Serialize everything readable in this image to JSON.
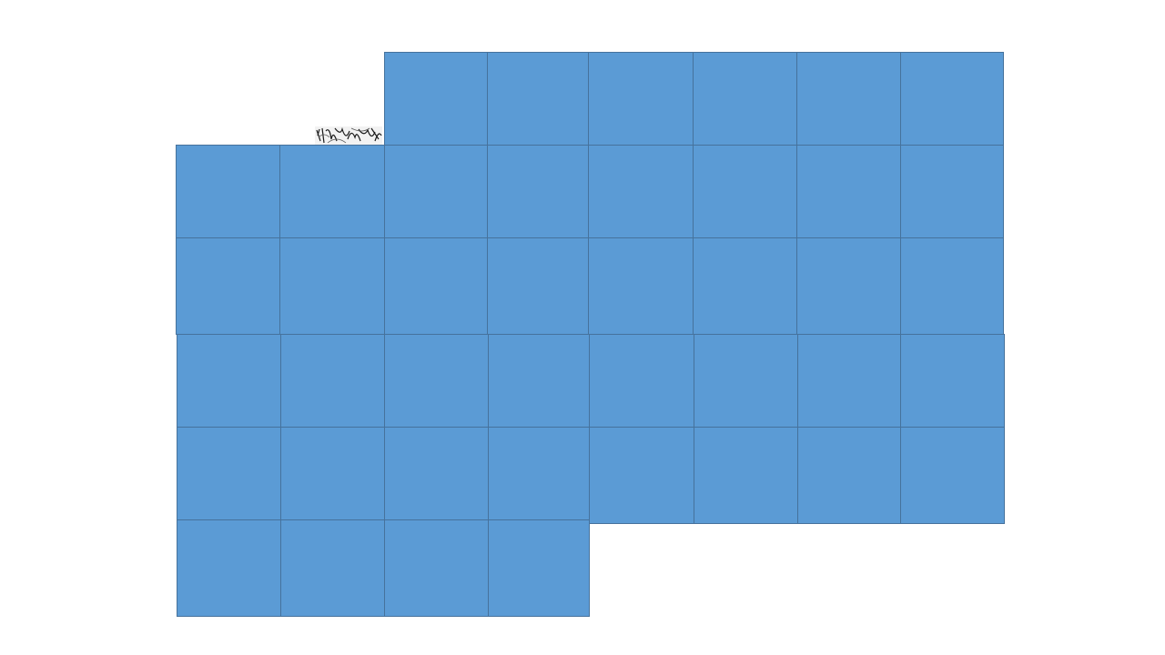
{
  "canvas": {
    "background": "#ffffff"
  },
  "tiles": {
    "fill_color": "#5b9bd5",
    "border_color": "#46729c"
  },
  "fragment": {
    "icon": "scribble-image-fragment",
    "ink_color": "#1a1a1a"
  }
}
